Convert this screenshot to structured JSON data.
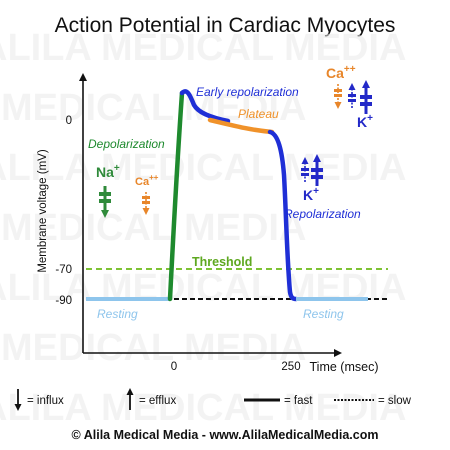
{
  "title": "Action Potential in Cardiac Myocytes",
  "watermark": "ALILA MEDICAL MEDIA",
  "axes": {
    "ylabel": "Membrane voltage (mV)",
    "xlabel": "Time (msec)",
    "yticks": [
      "0",
      "-70",
      "-90"
    ],
    "xticks": [
      "0",
      "250"
    ]
  },
  "phases": {
    "depolarization": "Depolarization",
    "early_repolarization": "Early repolarization",
    "plateau": "Plateau",
    "repolarization": "Repolarization",
    "threshold": "Threshold",
    "resting_left": "Resting",
    "resting_right": "Resting"
  },
  "ions": {
    "na": "Na",
    "na_sup": "+",
    "ca": "Ca",
    "ca_sup": "++",
    "k": "K",
    "k_sup": "+"
  },
  "legend": {
    "influx": "= influx",
    "efflux": "= efflux",
    "fast": "= fast",
    "slow": "= slow"
  },
  "copyright": "© Alila Medical Media - www.AlilaMedicalMedia.com",
  "colors": {
    "depolarization": "#1e8a2e",
    "plateau": "#f0922a",
    "repolarization": "#1f2fd6",
    "resting": "#8ec5ec",
    "threshold": "#7ec234",
    "axis": "#111111",
    "na_channel": "#2f8a3a",
    "ca_channel": "#e8862a",
    "k_channel": "#2329c8"
  }
}
